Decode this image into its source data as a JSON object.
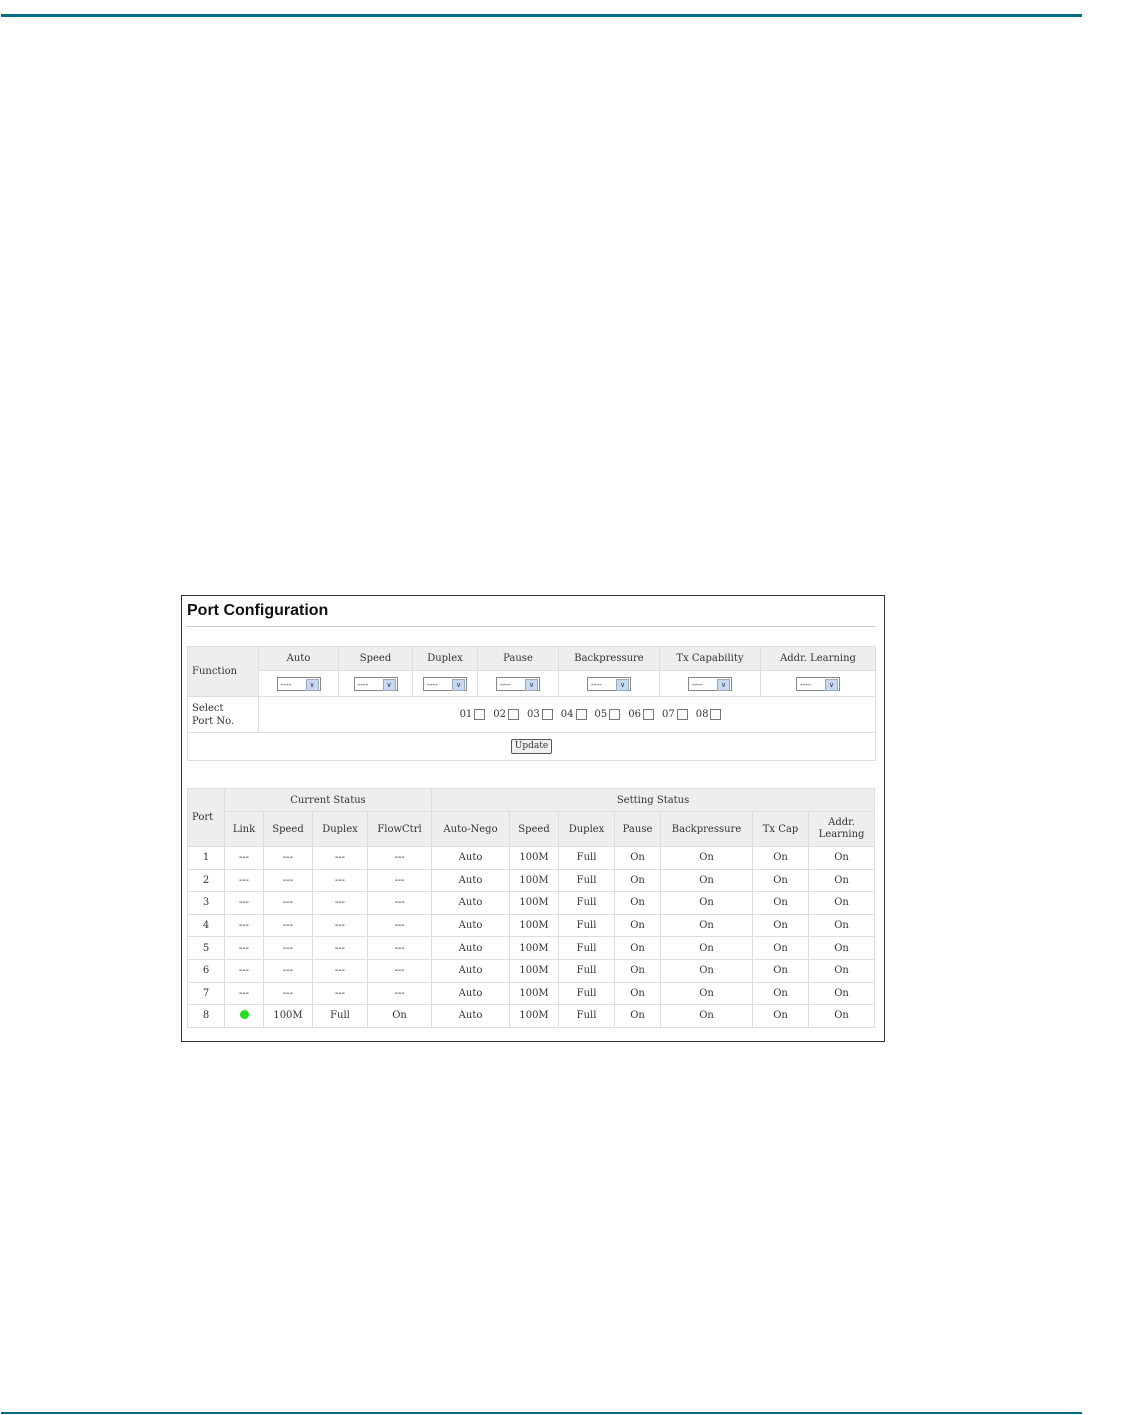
{
  "rule_color": "#006b85",
  "title": "Port Configuration",
  "function_table": {
    "function_label": "Function",
    "columns": [
      "Auto",
      "Speed",
      "Duplex",
      "Pause",
      "Backpressure",
      "Tx Capability",
      "Addr. Learning"
    ],
    "select_value": "----",
    "select_port_label_1": "Select",
    "select_port_label_2": "Port No.",
    "ports": [
      "01",
      "02",
      "03",
      "04",
      "05",
      "06",
      "07",
      "08"
    ],
    "update_label": "Update"
  },
  "status_table": {
    "port_label": "Port",
    "current_status": "Current Status",
    "setting_status": "Setting Status",
    "columns": [
      "Link",
      "Speed",
      "Duplex",
      "FlowCtrl",
      "Auto-Nego",
      "Speed",
      "Duplex",
      "Pause",
      "Backpressure",
      "Tx Cap",
      "Addr. Learning"
    ],
    "link_up_color": "#22dd22",
    "rows": [
      {
        "port": "1",
        "link": "---",
        "speed": "---",
        "duplex": "---",
        "flow": "---",
        "auto": "Auto",
        "sspeed": "100M",
        "sduplex": "Full",
        "pause": "On",
        "bp": "On",
        "tx": "On",
        "addr": "On"
      },
      {
        "port": "2",
        "link": "---",
        "speed": "---",
        "duplex": "---",
        "flow": "---",
        "auto": "Auto",
        "sspeed": "100M",
        "sduplex": "Full",
        "pause": "On",
        "bp": "On",
        "tx": "On",
        "addr": "On"
      },
      {
        "port": "3",
        "link": "---",
        "speed": "---",
        "duplex": "---",
        "flow": "---",
        "auto": "Auto",
        "sspeed": "100M",
        "sduplex": "Full",
        "pause": "On",
        "bp": "On",
        "tx": "On",
        "addr": "On"
      },
      {
        "port": "4",
        "link": "---",
        "speed": "---",
        "duplex": "---",
        "flow": "---",
        "auto": "Auto",
        "sspeed": "100M",
        "sduplex": "Full",
        "pause": "On",
        "bp": "On",
        "tx": "On",
        "addr": "On"
      },
      {
        "port": "5",
        "link": "---",
        "speed": "---",
        "duplex": "---",
        "flow": "---",
        "auto": "Auto",
        "sspeed": "100M",
        "sduplex": "Full",
        "pause": "On",
        "bp": "On",
        "tx": "On",
        "addr": "On"
      },
      {
        "port": "6",
        "link": "---",
        "speed": "---",
        "duplex": "---",
        "flow": "---",
        "auto": "Auto",
        "sspeed": "100M",
        "sduplex": "Full",
        "pause": "On",
        "bp": "On",
        "tx": "On",
        "addr": "On"
      },
      {
        "port": "7",
        "link": "---",
        "speed": "---",
        "duplex": "---",
        "flow": "---",
        "auto": "Auto",
        "sspeed": "100M",
        "sduplex": "Full",
        "pause": "On",
        "bp": "On",
        "tx": "On",
        "addr": "On"
      },
      {
        "port": "8",
        "link": "up",
        "speed": "100M",
        "duplex": "Full",
        "flow": "On",
        "auto": "Auto",
        "sspeed": "100M",
        "sduplex": "Full",
        "pause": "On",
        "bp": "On",
        "tx": "On",
        "addr": "On"
      }
    ]
  }
}
